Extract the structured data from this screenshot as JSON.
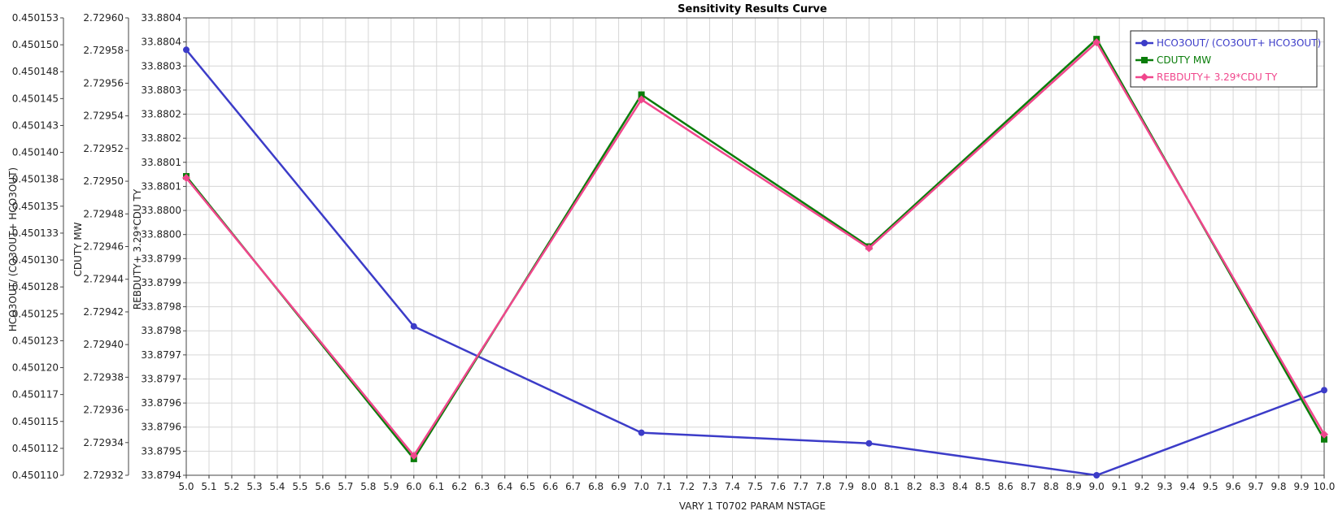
{
  "chart_data": {
    "type": "line",
    "title": "Sensitivity Results Curve",
    "xlabel": "VARY   1 T0702 PARAM NSTAGE",
    "x": [
      5.0,
      6.0,
      7.0,
      8.0,
      9.0,
      10.0
    ],
    "xlim": [
      5.0,
      10.0
    ],
    "x_ticks": [
      "5.0",
      "5.1",
      "5.2",
      "5.3",
      "5.4",
      "5.5",
      "5.6",
      "5.7",
      "5.8",
      "5.9",
      "6.0",
      "6.1",
      "6.2",
      "6.3",
      "6.4",
      "6.5",
      "6.6",
      "6.7",
      "6.8",
      "6.9",
      "7.0",
      "7.1",
      "7.2",
      "7.3",
      "7.4",
      "7.5",
      "7.6",
      "7.7",
      "7.8",
      "7.9",
      "8.0",
      "8.1",
      "8.2",
      "8.3",
      "8.4",
      "8.5",
      "8.6",
      "8.7",
      "8.8",
      "8.9",
      "9.0",
      "9.1",
      "9.2",
      "9.3",
      "9.4",
      "9.5",
      "9.6",
      "9.7",
      "9.8",
      "9.9",
      "10.0"
    ],
    "grid": true,
    "legend_position": "top-right",
    "y_axes": [
      {
        "label": "HCO3OUT/ (CO3OUT+ HCO3OUT)",
        "ylim": [
          0.45011,
          0.450153
        ],
        "ticks": [
          "0.450110",
          "0.450112",
          "0.450115",
          "0.450117",
          "0.450120",
          "0.450123",
          "0.450125",
          "0.450128",
          "0.450130",
          "0.450133",
          "0.450135",
          "0.450138",
          "0.450140",
          "0.450143",
          "0.450145",
          "0.450148",
          "0.450150",
          "0.450153"
        ]
      },
      {
        "label": "CDUTY MW",
        "ylim": [
          2.72932,
          2.7296
        ],
        "ticks": [
          "2.72932",
          "2.72934",
          "2.72936",
          "2.72938",
          "2.72940",
          "2.72942",
          "2.72944",
          "2.72946",
          "2.72948",
          "2.72950",
          "2.72952",
          "2.72954",
          "2.72956",
          "2.72958",
          "2.72960"
        ]
      },
      {
        "label": "REBDUTY+ 3.29*CDU TY",
        "ylim": [
          33.8794,
          33.8804
        ],
        "ticks": [
          "33.8794",
          "33.8795",
          "33.8796",
          "33.8796",
          "33.8797",
          "33.8797",
          "33.8798",
          "33.8798",
          "33.8799",
          "33.8799",
          "33.8800",
          "33.8800",
          "33.8801",
          "33.8801",
          "33.8802",
          "33.8802",
          "33.8803",
          "33.8803",
          "33.8804",
          "33.8804"
        ]
      }
    ],
    "series": [
      {
        "name": "HCO3OUT/ (CO3OUT+ HCO3OUT)",
        "axis": 0,
        "color": "#3c3cc8",
        "marker": "circle",
        "values": [
          0.45015,
          0.450124,
          0.450114,
          0.450113,
          0.45011,
          0.450118
        ]
      },
      {
        "name": "CDUTY MW",
        "axis": 1,
        "color": "#0a7d0a",
        "marker": "square",
        "values": [
          2.729503,
          2.72933,
          2.729553,
          2.72946,
          2.729587,
          2.729342
        ]
      },
      {
        "name": "REBDUTY+ 3.29*CDU TY",
        "axis": 1,
        "color": "#f0468c",
        "marker": "diamond",
        "values": [
          2.729502,
          2.729332,
          2.72955,
          2.729459,
          2.729585,
          2.729345
        ]
      }
    ]
  }
}
